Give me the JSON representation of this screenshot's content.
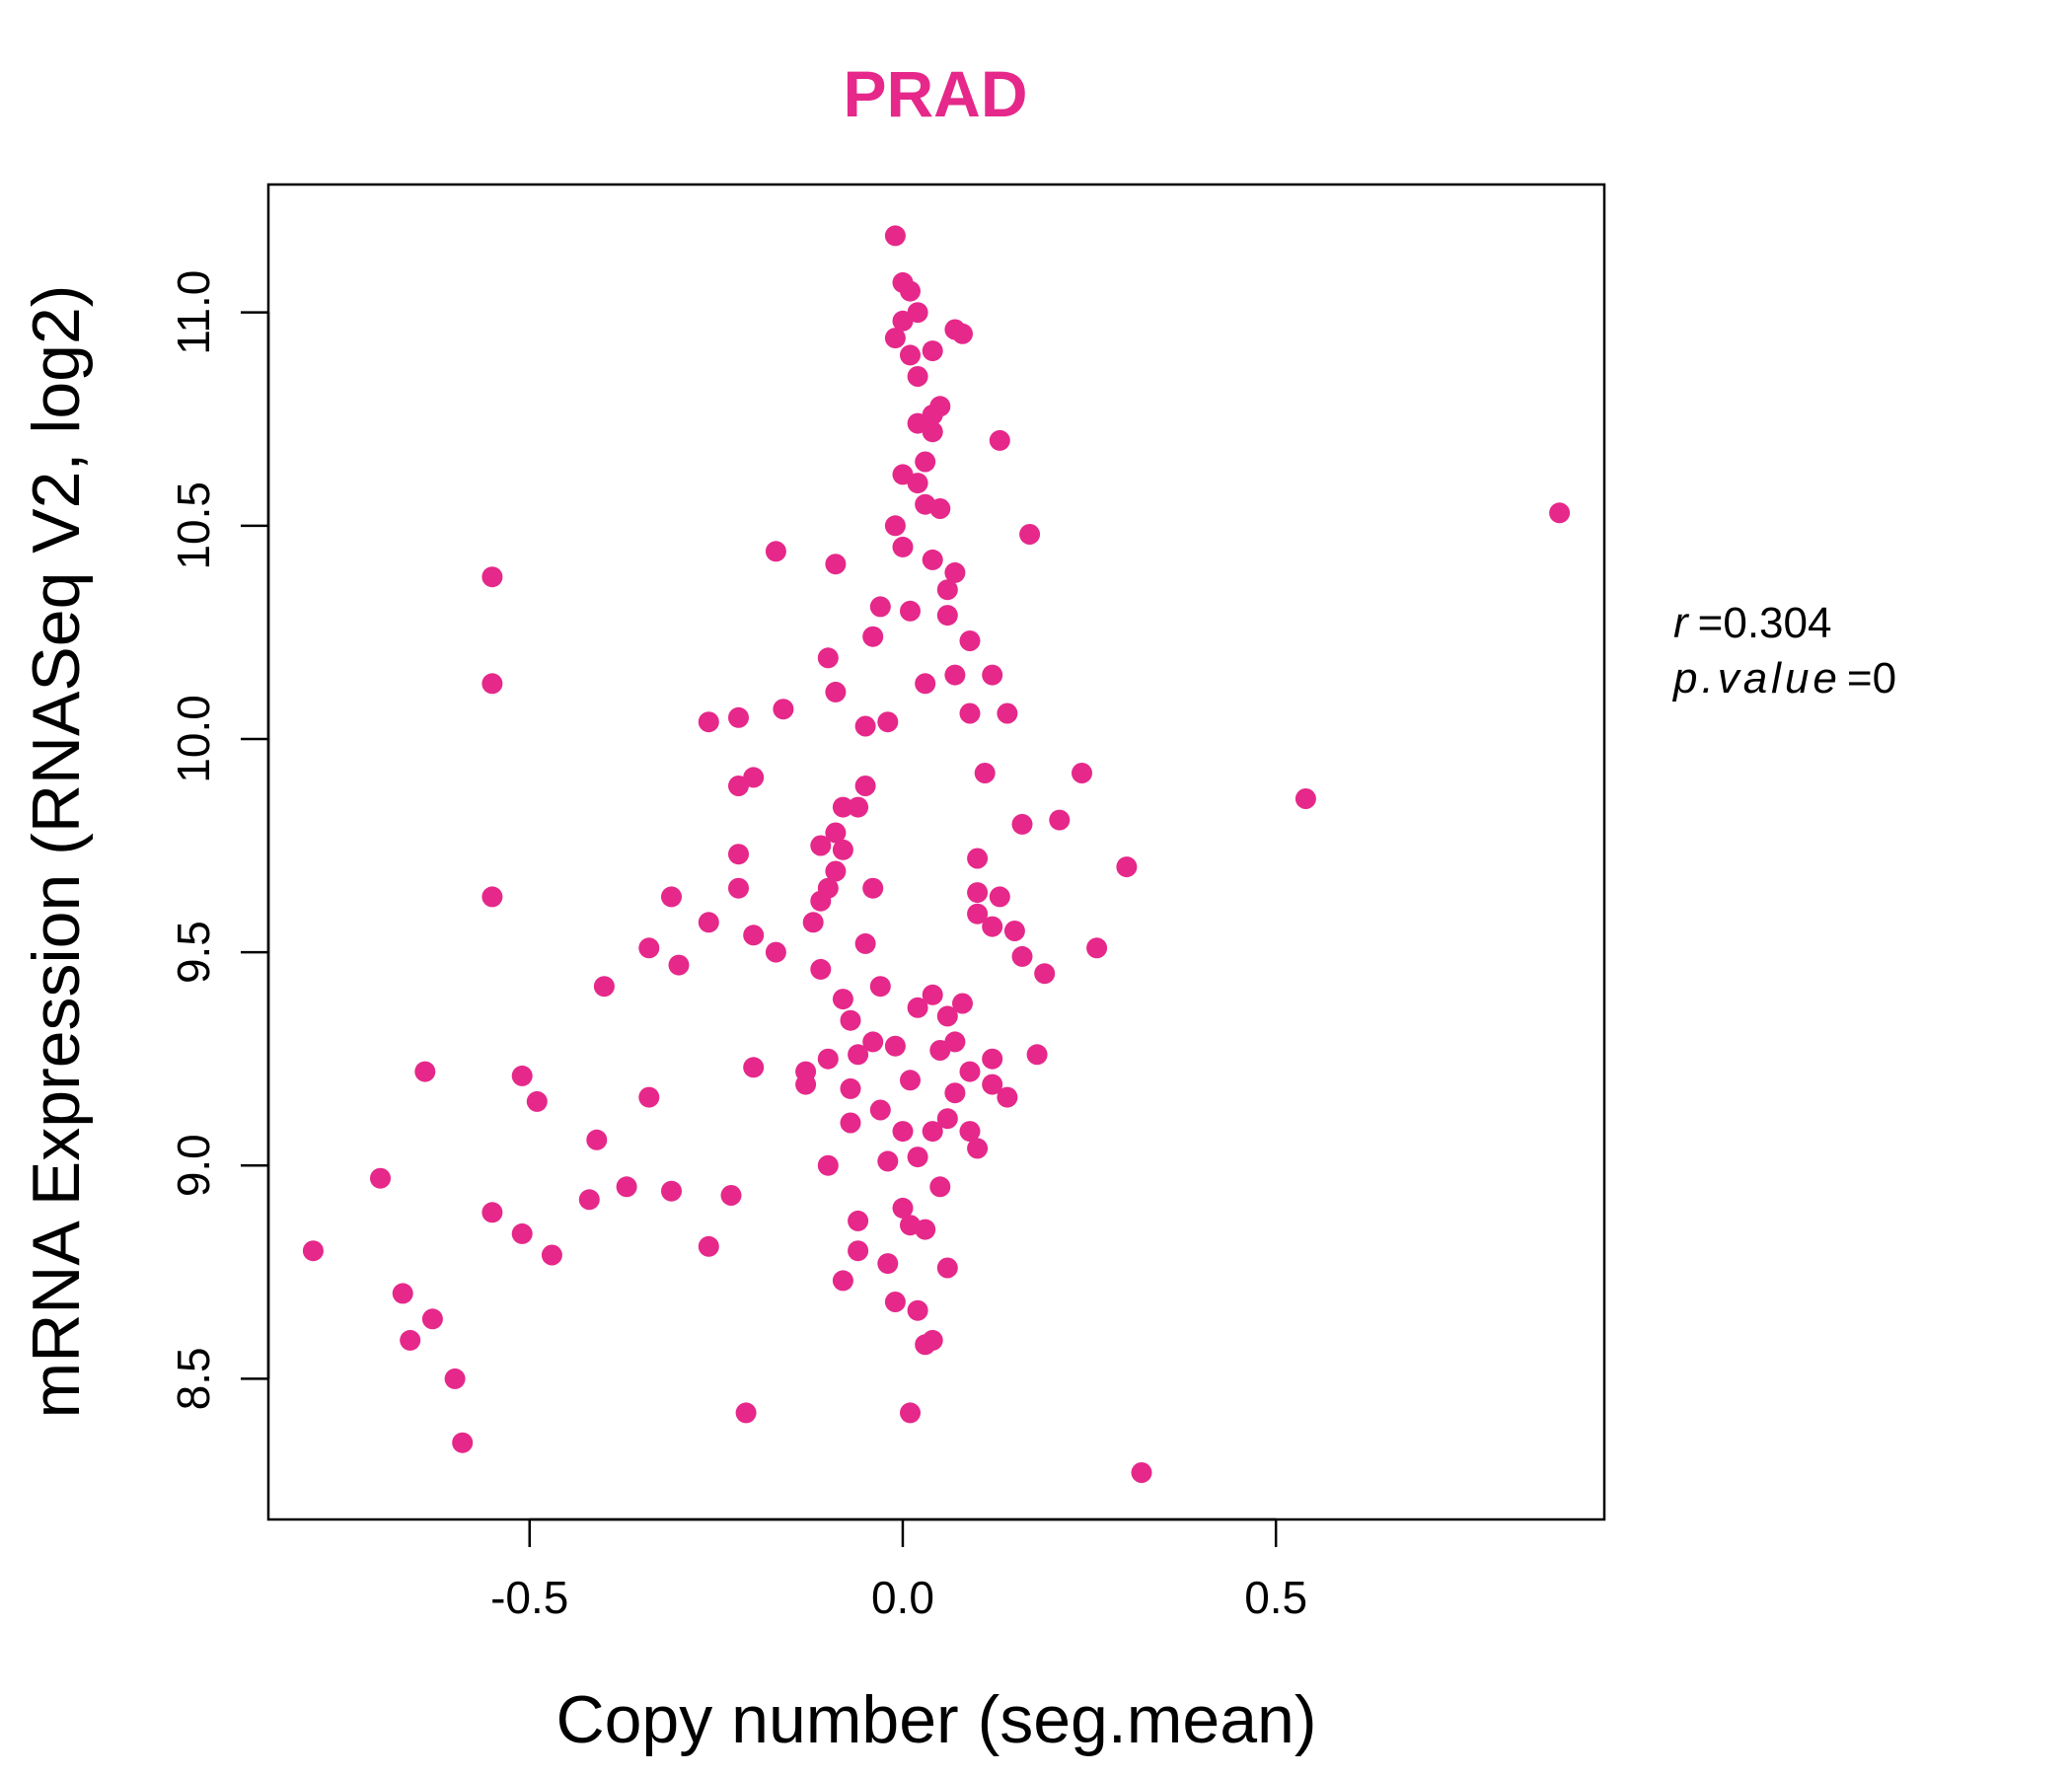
{
  "chart_data": {
    "type": "scatter",
    "title": "PRAD",
    "xlabel": "Copy number (seg.mean)",
    "ylabel": "mRNA Expression (RNASeq V2, log2)",
    "xlim": [
      -0.85,
      0.94
    ],
    "ylim": [
      8.17,
      11.3
    ],
    "x_ticks": [
      "-0.5",
      "0.0",
      "0.5"
    ],
    "y_ticks": [
      "8.5",
      "9.0",
      "9.5",
      "10.0",
      "10.5",
      "11.0"
    ],
    "annotation": {
      "r_label": "r",
      "r_value": "0.304",
      "p_label": "p.value",
      "p_value": "0"
    },
    "grid": false,
    "color": "#E5288A",
    "points": [
      {
        "x": 0.88,
        "y": 10.53
      },
      {
        "x": 0.54,
        "y": 9.86
      },
      {
        "x": 0.32,
        "y": 8.28
      },
      {
        "x": 0.3,
        "y": 9.7
      },
      {
        "x": 0.26,
        "y": 9.51
      },
      {
        "x": 0.24,
        "y": 9.92
      },
      {
        "x": 0.21,
        "y": 9.81
      },
      {
        "x": 0.19,
        "y": 9.45
      },
      {
        "x": 0.18,
        "y": 9.26
      },
      {
        "x": 0.17,
        "y": 10.48
      },
      {
        "x": 0.16,
        "y": 9.8
      },
      {
        "x": 0.16,
        "y": 9.49
      },
      {
        "x": 0.15,
        "y": 9.55
      },
      {
        "x": 0.14,
        "y": 10.06
      },
      {
        "x": 0.14,
        "y": 9.16
      },
      {
        "x": 0.13,
        "y": 10.7
      },
      {
        "x": 0.13,
        "y": 9.63
      },
      {
        "x": 0.12,
        "y": 10.15
      },
      {
        "x": 0.12,
        "y": 9.56
      },
      {
        "x": 0.12,
        "y": 9.25
      },
      {
        "x": 0.12,
        "y": 9.19
      },
      {
        "x": 0.11,
        "y": 9.92
      },
      {
        "x": 0.1,
        "y": 9.72
      },
      {
        "x": 0.1,
        "y": 9.64
      },
      {
        "x": 0.1,
        "y": 9.59
      },
      {
        "x": 0.1,
        "y": 9.04
      },
      {
        "x": 0.09,
        "y": 10.23
      },
      {
        "x": 0.09,
        "y": 10.06
      },
      {
        "x": 0.09,
        "y": 9.22
      },
      {
        "x": 0.09,
        "y": 9.08
      },
      {
        "x": 0.08,
        "y": 10.95
      },
      {
        "x": 0.08,
        "y": 9.38
      },
      {
        "x": 0.07,
        "y": 10.96
      },
      {
        "x": 0.07,
        "y": 10.39
      },
      {
        "x": 0.07,
        "y": 10.15
      },
      {
        "x": 0.07,
        "y": 9.29
      },
      {
        "x": 0.07,
        "y": 9.17
      },
      {
        "x": 0.06,
        "y": 10.35
      },
      {
        "x": 0.06,
        "y": 10.29
      },
      {
        "x": 0.06,
        "y": 9.35
      },
      {
        "x": 0.06,
        "y": 9.11
      },
      {
        "x": 0.06,
        "y": 8.76
      },
      {
        "x": 0.05,
        "y": 10.78
      },
      {
        "x": 0.05,
        "y": 10.54
      },
      {
        "x": 0.05,
        "y": 9.27
      },
      {
        "x": 0.05,
        "y": 8.95
      },
      {
        "x": 0.04,
        "y": 10.91
      },
      {
        "x": 0.04,
        "y": 10.76
      },
      {
        "x": 0.04,
        "y": 10.72
      },
      {
        "x": 0.04,
        "y": 10.42
      },
      {
        "x": 0.04,
        "y": 9.4
      },
      {
        "x": 0.04,
        "y": 9.08
      },
      {
        "x": 0.04,
        "y": 8.59
      },
      {
        "x": 0.03,
        "y": 10.65
      },
      {
        "x": 0.03,
        "y": 10.55
      },
      {
        "x": 0.03,
        "y": 10.13
      },
      {
        "x": 0.03,
        "y": 8.85
      },
      {
        "x": 0.03,
        "y": 8.58
      },
      {
        "x": 0.02,
        "y": 11.0
      },
      {
        "x": 0.02,
        "y": 10.85
      },
      {
        "x": 0.02,
        "y": 10.74
      },
      {
        "x": 0.02,
        "y": 10.6
      },
      {
        "x": 0.02,
        "y": 9.37
      },
      {
        "x": 0.02,
        "y": 9.02
      },
      {
        "x": 0.02,
        "y": 8.66
      },
      {
        "x": 0.01,
        "y": 11.05
      },
      {
        "x": 0.01,
        "y": 10.9
      },
      {
        "x": 0.01,
        "y": 10.3
      },
      {
        "x": 0.01,
        "y": 9.2
      },
      {
        "x": 0.01,
        "y": 8.42
      },
      {
        "x": 0.01,
        "y": 8.86
      },
      {
        "x": 0.0,
        "y": 11.07
      },
      {
        "x": 0.0,
        "y": 10.98
      },
      {
        "x": 0.0,
        "y": 10.62
      },
      {
        "x": 0.0,
        "y": 10.45
      },
      {
        "x": 0.0,
        "y": 9.08
      },
      {
        "x": 0.0,
        "y": 8.9
      },
      {
        "x": -0.01,
        "y": 11.18
      },
      {
        "x": -0.01,
        "y": 10.94
      },
      {
        "x": -0.01,
        "y": 10.5
      },
      {
        "x": -0.01,
        "y": 9.28
      },
      {
        "x": -0.01,
        "y": 8.68
      },
      {
        "x": -0.02,
        "y": 10.04
      },
      {
        "x": -0.02,
        "y": 9.01
      },
      {
        "x": -0.02,
        "y": 8.77
      },
      {
        "x": -0.03,
        "y": 10.31
      },
      {
        "x": -0.03,
        "y": 9.42
      },
      {
        "x": -0.03,
        "y": 9.13
      },
      {
        "x": -0.04,
        "y": 10.24
      },
      {
        "x": -0.04,
        "y": 9.65
      },
      {
        "x": -0.04,
        "y": 9.29
      },
      {
        "x": -0.05,
        "y": 10.03
      },
      {
        "x": -0.05,
        "y": 9.89
      },
      {
        "x": -0.05,
        "y": 9.52
      },
      {
        "x": -0.06,
        "y": 9.84
      },
      {
        "x": -0.06,
        "y": 9.26
      },
      {
        "x": -0.06,
        "y": 8.8
      },
      {
        "x": -0.06,
        "y": 8.87
      },
      {
        "x": -0.07,
        "y": 9.34
      },
      {
        "x": -0.07,
        "y": 9.18
      },
      {
        "x": -0.07,
        "y": 9.1
      },
      {
        "x": -0.08,
        "y": 9.84
      },
      {
        "x": -0.08,
        "y": 9.74
      },
      {
        "x": -0.08,
        "y": 9.39
      },
      {
        "x": -0.08,
        "y": 8.73
      },
      {
        "x": -0.09,
        "y": 10.41
      },
      {
        "x": -0.09,
        "y": 9.78
      },
      {
        "x": -0.09,
        "y": 9.69
      },
      {
        "x": -0.09,
        "y": 10.11
      },
      {
        "x": -0.1,
        "y": 10.19
      },
      {
        "x": -0.1,
        "y": 9.65
      },
      {
        "x": -0.1,
        "y": 9.25
      },
      {
        "x": -0.1,
        "y": 9.0
      },
      {
        "x": -0.11,
        "y": 9.75
      },
      {
        "x": -0.11,
        "y": 9.62
      },
      {
        "x": -0.11,
        "y": 9.46
      },
      {
        "x": -0.12,
        "y": 9.57
      },
      {
        "x": -0.13,
        "y": 9.22
      },
      {
        "x": -0.13,
        "y": 9.19
      },
      {
        "x": -0.16,
        "y": 10.07
      },
      {
        "x": -0.17,
        "y": 10.44
      },
      {
        "x": -0.17,
        "y": 9.5
      },
      {
        "x": -0.2,
        "y": 9.91
      },
      {
        "x": -0.2,
        "y": 9.54
      },
      {
        "x": -0.2,
        "y": 9.23
      },
      {
        "x": -0.21,
        "y": 8.42
      },
      {
        "x": -0.22,
        "y": 10.05
      },
      {
        "x": -0.22,
        "y": 9.73
      },
      {
        "x": -0.22,
        "y": 9.65
      },
      {
        "x": -0.22,
        "y": 9.89
      },
      {
        "x": -0.23,
        "y": 8.93
      },
      {
        "x": -0.26,
        "y": 10.04
      },
      {
        "x": -0.26,
        "y": 8.81
      },
      {
        "x": -0.26,
        "y": 9.57
      },
      {
        "x": -0.3,
        "y": 9.47
      },
      {
        "x": -0.31,
        "y": 9.63
      },
      {
        "x": -0.31,
        "y": 8.94
      },
      {
        "x": -0.34,
        "y": 9.51
      },
      {
        "x": -0.34,
        "y": 9.16
      },
      {
        "x": -0.37,
        "y": 8.95
      },
      {
        "x": -0.4,
        "y": 9.42
      },
      {
        "x": -0.41,
        "y": 9.06
      },
      {
        "x": -0.42,
        "y": 8.92
      },
      {
        "x": -0.47,
        "y": 8.79
      },
      {
        "x": -0.49,
        "y": 9.15
      },
      {
        "x": -0.51,
        "y": 8.84
      },
      {
        "x": -0.51,
        "y": 9.21
      },
      {
        "x": -0.55,
        "y": 9.63
      },
      {
        "x": -0.55,
        "y": 10.13
      },
      {
        "x": -0.55,
        "y": 10.38
      },
      {
        "x": -0.55,
        "y": 8.89
      },
      {
        "x": -0.59,
        "y": 8.35
      },
      {
        "x": -0.6,
        "y": 8.5
      },
      {
        "x": -0.63,
        "y": 8.64
      },
      {
        "x": -0.64,
        "y": 9.22
      },
      {
        "x": -0.66,
        "y": 8.59
      },
      {
        "x": -0.67,
        "y": 8.7
      },
      {
        "x": -0.7,
        "y": 8.97
      },
      {
        "x": -0.79,
        "y": 8.8
      }
    ]
  }
}
